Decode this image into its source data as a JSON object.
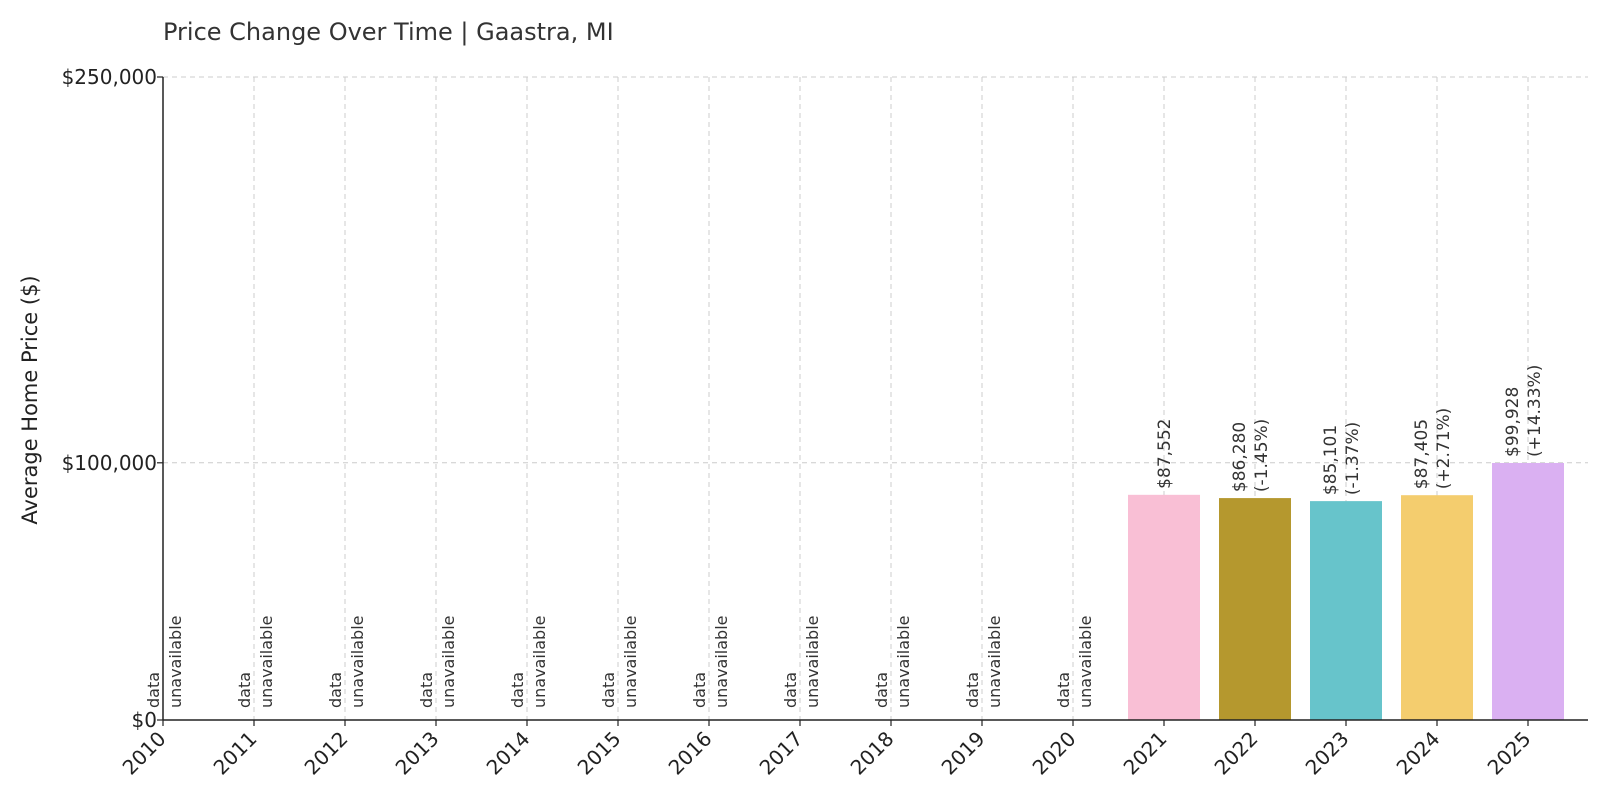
{
  "chart_data": {
    "type": "bar",
    "title": "Price Change Over Time | Gaastra, MI",
    "xlabel": "",
    "ylabel": "Average Home Price ($)",
    "ylim": [
      0,
      250000
    ],
    "y_ticks": [
      {
        "value": 0,
        "label": "$0"
      },
      {
        "value": 100000,
        "label": "$100,000"
      },
      {
        "value": 250000,
        "label": "$250,000"
      }
    ],
    "grid": true,
    "categories": [
      "2010",
      "2011",
      "2012",
      "2013",
      "2014",
      "2015",
      "2016",
      "2017",
      "2018",
      "2019",
      "2020",
      "2021",
      "2022",
      "2023",
      "2024",
      "2025"
    ],
    "values": [
      null,
      null,
      null,
      null,
      null,
      null,
      null,
      null,
      null,
      null,
      null,
      87552,
      86280,
      85101,
      87405,
      99928
    ],
    "value_labels": [
      null,
      null,
      null,
      null,
      null,
      null,
      null,
      null,
      null,
      null,
      null,
      "$87,552",
      "$86,280",
      "$85,101",
      "$87,405",
      "$99,928"
    ],
    "change_labels": [
      null,
      null,
      null,
      null,
      null,
      null,
      null,
      null,
      null,
      null,
      null,
      null,
      "(-1.45%)",
      "(-1.37%)",
      "(+2.71%)",
      "(+14.33%)"
    ],
    "unavailable_label": [
      "data",
      "unavailable"
    ],
    "bar_colors": [
      "#f9bfd5",
      "#b5982e",
      "#67c4cb",
      "#f4cd6e",
      "#dab0f2"
    ]
  }
}
